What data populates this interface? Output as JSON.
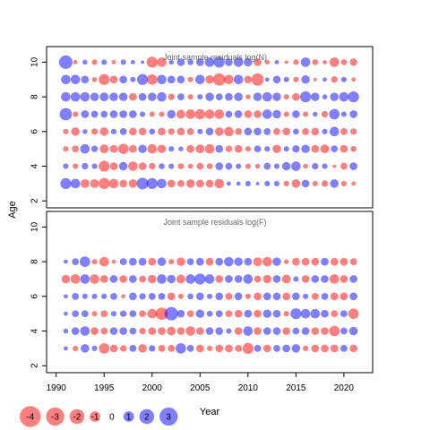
{
  "chart_data": {
    "type": "scatter",
    "ylabel": "Age",
    "xlabel": "Year",
    "x_ticks": [
      1990,
      1995,
      2000,
      2005,
      2010,
      2015,
      2020
    ],
    "xlim": [
      1989,
      2023
    ],
    "years": [
      1991,
      1992,
      1993,
      1994,
      1995,
      1996,
      1997,
      1998,
      1999,
      2000,
      2001,
      2002,
      2003,
      2004,
      2005,
      2006,
      2007,
      2008,
      2009,
      2010,
      2011,
      2012,
      2013,
      2014,
      2015,
      2016,
      2017,
      2018,
      2019,
      2020,
      2021
    ],
    "ages": [
      3,
      4,
      5,
      6,
      7,
      8,
      9,
      10
    ],
    "positive_color": "#0000FF",
    "negative_color": "#FF0000",
    "panels": [
      {
        "title": "Joint sample residuals log(N)",
        "y_ticks": [
          2,
          4,
          6,
          8,
          10
        ],
        "ylim": [
          1.6,
          10.9
        ],
        "residuals": {
          "10": [
            3.0,
            -0.3,
            0.4,
            -0.5,
            0.5,
            -0.3,
            0.5,
            0.3,
            0.2,
            -2.0,
            -1.5,
            0.4,
            1.0,
            0.6,
            1.0,
            1.5,
            2.0,
            1.0,
            1.5,
            1.2,
            -1.0,
            -0.4,
            0.3,
            -0.2,
            -0.5,
            1.5,
            -0.6,
            -0.3,
            -1.5,
            -0.6,
            -0.9
          ],
          "9": [
            1.5,
            1.5,
            1.0,
            -0.4,
            -2.0,
            -1.0,
            1.0,
            0.5,
            2.0,
            -1.8,
            1.5,
            1.0,
            1.0,
            -0.5,
            1.5,
            -1.2,
            -2.5,
            -1.5,
            1.5,
            -1.0,
            -2.5,
            0.3,
            1.0,
            0.5,
            -0.5,
            1.2,
            -0.2,
            0.3,
            -0.7,
            0.5,
            -0.3
          ],
          "8": [
            1.5,
            1.5,
            1.5,
            1.2,
            1.3,
            1.2,
            1.2,
            -1.0,
            1.0,
            1.2,
            1.5,
            -0.7,
            0.8,
            -0.5,
            0.5,
            1.2,
            0.8,
            1.0,
            1.2,
            -0.4,
            1.2,
            1.5,
            1.2,
            -0.5,
            -1.0,
            2.0,
            1.2,
            0.4,
            1.2,
            1.5,
            2.0
          ],
          "7": [
            2.5,
            -0.5,
            1.0,
            0.8,
            0.8,
            1.0,
            1.0,
            1.0,
            0.5,
            -0.5,
            -0.5,
            1.2,
            -1.3,
            -1.5,
            -1.7,
            -1.5,
            -1.5,
            0.8,
            1.0,
            -1.0,
            -1.0,
            1.5,
            1.2,
            -0.5,
            1.0,
            -0.5,
            0.4,
            -0.7,
            1.8,
            0.5,
            1.0
          ],
          "6": [
            -0.5,
            -1.2,
            0.4,
            -0.7,
            -1.2,
            0.5,
            0.8,
            -1.0,
            -1.0,
            0.6,
            -1.0,
            -0.7,
            -1.0,
            -0.8,
            0.5,
            1.0,
            -1.2,
            -1.5,
            -0.8,
            1.0,
            1.0,
            0.8,
            -0.8,
            -1.0,
            0.6,
            -0.8,
            -1.0,
            0.5,
            1.5,
            -0.8,
            -0.7
          ],
          "5": [
            -0.5,
            -0.8,
            1.5,
            0.7,
            -1.3,
            -1.0,
            -1.8,
            -1.0,
            1.2,
            -1.5,
            -1.2,
            0.5,
            0.4,
            -1.0,
            -1.3,
            -1.5,
            1.0,
            -0.7,
            -1.0,
            -0.5,
            0.8,
            0.5,
            -1.2,
            0.5,
            0.9,
            1.2,
            -1.0,
            -1.3,
            0.8,
            -1.0,
            -0.6
          ],
          "4": [
            0.5,
            -0.5,
            0.7,
            0.5,
            -2.0,
            -1.0,
            1.2,
            -1.5,
            -1.0,
            -0.7,
            0.6,
            0.5,
            -0.6,
            -0.4,
            -0.8,
            -0.6,
            1.0,
            0.8,
            0.5,
            -0.5,
            -0.4,
            0.8,
            0.5,
            1.2,
            1.5,
            -0.4,
            0.7,
            0.5,
            -0.2,
            -0.8,
            1.0
          ],
          "3": [
            2.0,
            1.5,
            -1.3,
            -1.3,
            -2.0,
            -1.5,
            -1.0,
            -1.2,
            2.3,
            2.0,
            1.5,
            -1.0,
            -0.8,
            -1.2,
            -1.0,
            -1.0,
            -1.5,
            0.3,
            0.3,
            0.5,
            0.2,
            0.5,
            0.5,
            -0.5,
            -1.2,
            1.0,
            -0.5,
            -0.7,
            1.2,
            -0.5,
            -0.3
          ]
        }
      },
      {
        "title": "Joint sample residuals log(F)",
        "y_ticks": [
          2,
          4,
          6,
          8,
          10
        ],
        "ylim": [
          1.6,
          10.9
        ],
        "residuals": {
          "8": [
            0.3,
            0.8,
            1.8,
            -0.5,
            -1.5,
            -0.3,
            0.8,
            1.0,
            1.0,
            -1.0,
            1.2,
            -0.5,
            -1.2,
            0.8,
            1.0,
            -1.0,
            1.0,
            1.5,
            1.2,
            1.0,
            -1.3,
            -1.5,
            1.2,
            -0.4,
            -1.0,
            -1.0,
            -1.0,
            1.0,
            -1.0,
            -1.0,
            -0.8
          ],
          "7": [
            -1.2,
            -1.5,
            1.5,
            -1.5,
            -1.0,
            1.0,
            -1.0,
            1.0,
            -0.8,
            -1.2,
            1.5,
            1.2,
            -1.3,
            1.5,
            2.0,
            1.5,
            -1.0,
            1.0,
            1.0,
            1.5,
            -0.8,
            -1.2,
            1.0,
            -1.3,
            0.5,
            -1.0,
            1.0,
            1.0,
            -1.5,
            -1.0,
            1.0
          ],
          "6": [
            0.3,
            0.8,
            0.5,
            0.5,
            0.5,
            0.8,
            -0.3,
            1.0,
            0.7,
            0.8,
            0.8,
            -1.0,
            -0.5,
            0.6,
            1.0,
            0.5,
            1.0,
            -0.8,
            1.0,
            -0.5,
            -1.0,
            1.0,
            1.0,
            -1.0,
            1.0,
            0.5,
            -0.8,
            0.8,
            -1.0,
            -1.0,
            1.0
          ],
          "5": [
            0.3,
            0.8,
            0.8,
            -0.5,
            -0.8,
            0.5,
            0.7,
            0.8,
            -0.8,
            -1.5,
            -2.5,
            3.0,
            1.0,
            -0.8,
            1.2,
            0.6,
            0.8,
            -0.8,
            -1.0,
            1.0,
            -1.0,
            1.2,
            1.0,
            -0.5,
            2.0,
            1.5,
            1.5,
            1.0,
            -0.8,
            0.8,
            -1.8
          ],
          "4": [
            0.4,
            1.0,
            1.5,
            -1.0,
            -0.8,
            1.0,
            1.0,
            0.8,
            -0.7,
            -1.0,
            -1.0,
            -1.3,
            -1.0,
            -1.5,
            -1.0,
            1.0,
            1.0,
            0.5,
            -1.0,
            1.5,
            -1.0,
            1.0,
            1.0,
            -1.0,
            0.8,
            1.0,
            -1.0,
            -1.0,
            -1.8,
            0.8,
            1.2
          ],
          "3": [
            0.3,
            -0.5,
            1.2,
            0.5,
            -1.8,
            -1.0,
            -0.7,
            0.8,
            -1.2,
            0.7,
            -0.8,
            -0.8,
            1.8,
            0.8,
            -1.0,
            -0.5,
            -1.0,
            -1.0,
            -0.8,
            -2.0,
            0.8,
            -1.0,
            0.8,
            1.0,
            1.2,
            -0.5,
            -1.0,
            -1.0,
            -1.0,
            0.8,
            -1.0
          ]
        }
      }
    ],
    "legend": {
      "values": [
        -4,
        -3,
        -2,
        -1,
        0,
        1,
        2,
        3
      ],
      "labels": [
        "-4",
        "-3",
        "-2",
        "-1",
        "0",
        "1",
        "2",
        "3"
      ]
    }
  }
}
